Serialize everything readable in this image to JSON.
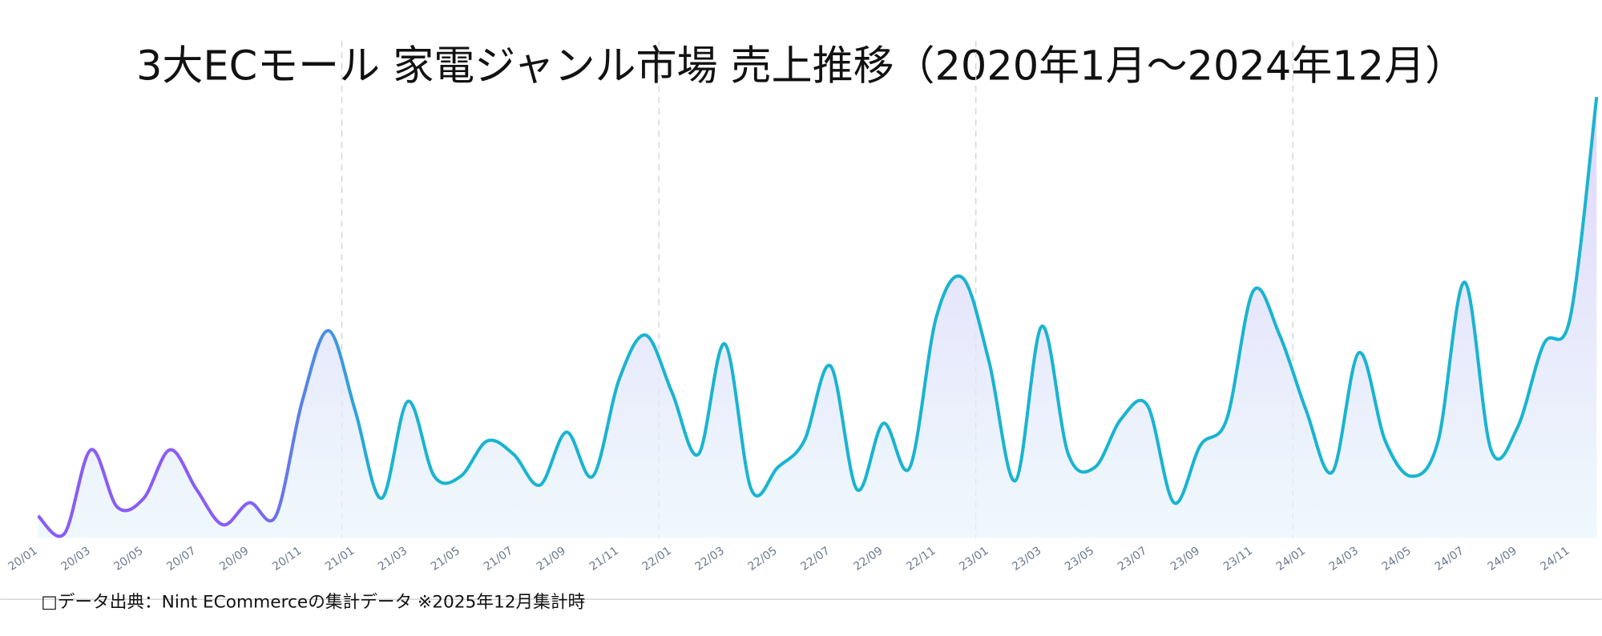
{
  "chart_data": {
    "type": "line",
    "title": "3大ECモール  家電ジャンル市場  売上推移（2020年1月～2024年12月）",
    "footnote": "□データ出典：Nint ECommerceの集計データ  ※2025年12月集計時",
    "categories": [
      "20/01",
      null,
      "20/03",
      null,
      "20/05",
      null,
      "20/07",
      null,
      "20/09",
      null,
      "20/11",
      null,
      "21/01",
      null,
      "21/03",
      null,
      "21/05",
      null,
      "21/07",
      null,
      "21/09",
      null,
      "21/11",
      null,
      "22/01",
      null,
      "22/03",
      null,
      "22/05",
      null,
      "22/07",
      null,
      "22/09",
      null,
      "22/11",
      null,
      "23/01",
      null,
      "23/03",
      null,
      "23/05",
      null,
      "23/07",
      null,
      "23/09",
      null,
      "23/11",
      null,
      "24/01",
      null,
      "24/03",
      null,
      "24/05",
      null,
      "24/07",
      null,
      "24/09",
      null,
      "24/11",
      null
    ],
    "series": [
      {
        "color": "#1ab4d0",
        "values": [
          5,
          1,
          20,
          7,
          9,
          20,
          11,
          3,
          8,
          5,
          31,
          47,
          29,
          9,
          31,
          14,
          14,
          22,
          19,
          12,
          24,
          14,
          36,
          46,
          33,
          19,
          44,
          11,
          16,
          22,
          39,
          11,
          26,
          16,
          50,
          59,
          40,
          13,
          48,
          19,
          16,
          27,
          30,
          8,
          21,
          27,
          56,
          46,
          29,
          15,
          42,
          22,
          14,
          22,
          58,
          20,
          25,
          44,
          50,
          100
        ]
      }
    ],
    "ylim": [
      0,
      100
    ]
  }
}
